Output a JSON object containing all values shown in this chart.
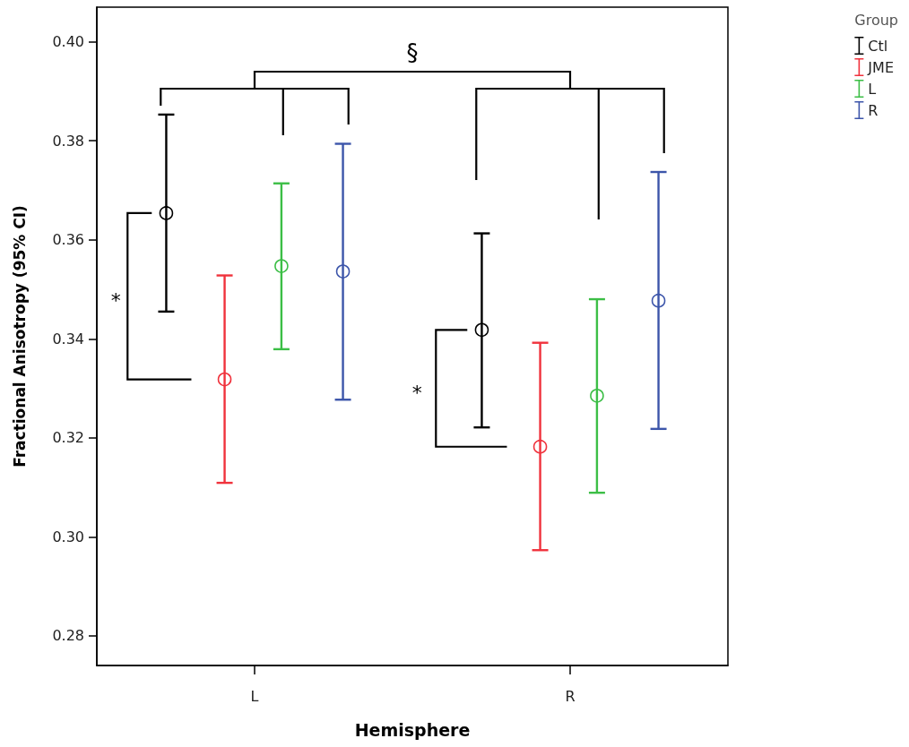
{
  "chart_data": {
    "type": "scatter",
    "xlabel": "Hemisphere",
    "ylabel": "Fractional Anisotropy (95% CI)",
    "legend_title": "Group",
    "categories": [
      "L",
      "R"
    ],
    "series": [
      {
        "name": "Ctl",
        "color": "#000000",
        "values": [
          0.3654,
          0.3418
        ],
        "errors": [
          [
            0.3455,
            0.3853
          ],
          [
            0.3221,
            0.3613
          ]
        ]
      },
      {
        "name": "JME",
        "color": "#f0323c",
        "values": [
          0.3318,
          0.3182
        ],
        "errors": [
          [
            0.3109,
            0.3528
          ],
          [
            0.2973,
            0.3392
          ]
        ]
      },
      {
        "name": "L",
        "color": "#3cbe46",
        "values": [
          0.3547,
          0.3285
        ],
        "errors": [
          [
            0.3379,
            0.3714
          ],
          [
            0.3089,
            0.348
          ]
        ]
      },
      {
        "name": "R",
        "color": "#3c55aa",
        "values": [
          0.3536,
          0.3477
        ],
        "errors": [
          [
            0.3277,
            0.3794
          ],
          [
            0.3218,
            0.3737
          ]
        ]
      }
    ],
    "ylim": [
      0.274,
      0.407
    ],
    "yticks": [
      0.28,
      {
        "value": 0.3,
        "label": "0.30"
      },
      0.32,
      0.34,
      0.36,
      0.38,
      {
        "value": 0.4,
        "label": "0.40"
      }
    ],
    "marker": "circle",
    "legend": "top right",
    "annotations": [
      "§",
      "*",
      "*"
    ]
  }
}
